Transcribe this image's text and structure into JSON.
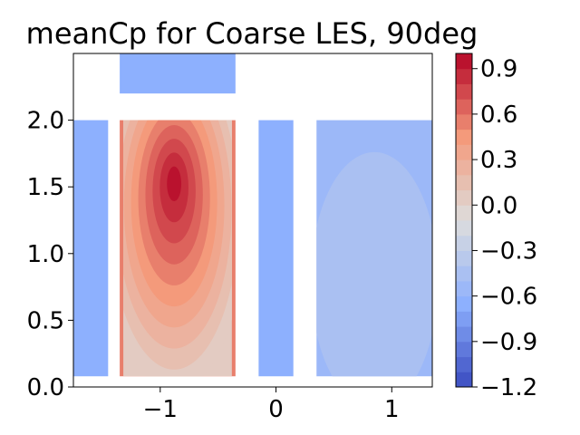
{
  "chart_data": {
    "type": "heatmap",
    "title": "meanCp for Coarse LES, 90deg",
    "xlabel": "",
    "ylabel": "",
    "xlim": [
      -1.75,
      1.35
    ],
    "ylim": [
      0.0,
      2.5
    ],
    "x_ticks": [
      -1,
      0,
      1
    ],
    "x_tick_labels": [
      "−1",
      "0",
      "1"
    ],
    "y_ticks": [
      0.0,
      0.5,
      1.0,
      1.5,
      2.0
    ],
    "y_tick_labels": [
      "0.0",
      "0.5",
      "1.0",
      "1.5",
      "2.0"
    ],
    "colorbar": {
      "min": -1.2,
      "max": 1.0,
      "levels": 22,
      "colormap": "coolwarm",
      "ticks": [
        -1.2,
        -0.9,
        -0.6,
        -0.3,
        0.0,
        0.3,
        0.6,
        0.9
      ],
      "tick_labels": [
        "−1.2",
        "−0.9",
        "−0.6",
        "−0.3",
        "0.0",
        "0.3",
        "0.6",
        "0.9"
      ]
    },
    "faces": [
      {
        "name": "left-side-face",
        "x": [
          -1.75,
          -1.45
        ],
        "y": [
          0.08,
          2.0
        ],
        "value": -0.68
      },
      {
        "name": "windward-face",
        "x": [
          -1.35,
          -0.35
        ],
        "y": [
          0.08,
          2.0
        ],
        "value": 0.6,
        "peak": {
          "x": -0.88,
          "y": 1.55,
          "value": 0.97
        }
      },
      {
        "name": "roof-face",
        "x": [
          -1.35,
          -0.35
        ],
        "y": [
          2.2,
          2.5
        ],
        "value": -0.62
      },
      {
        "name": "right-side-face",
        "x": [
          -0.15,
          0.15
        ],
        "y": [
          0.08,
          2.0
        ],
        "value": -0.68
      },
      {
        "name": "leeward-face",
        "x": [
          0.35,
          1.35
        ],
        "y": [
          0.08,
          2.0
        ],
        "value": -0.55,
        "center": {
          "x": 0.85,
          "y": 0.8,
          "value": -0.45
        }
      }
    ]
  }
}
